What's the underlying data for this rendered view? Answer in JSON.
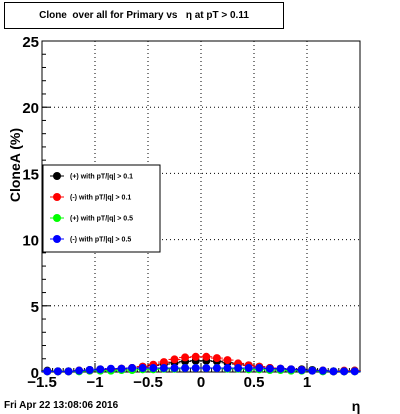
{
  "chart_data": {
    "type": "scatter",
    "title": "Clone  over all for Primary vs   η at pT > 0.11",
    "xlabel": "η",
    "ylabel": "CloneA (%)",
    "xlim": [
      -1.5,
      1.5
    ],
    "ylim": [
      0,
      25
    ],
    "x_ticks": [
      -1.5,
      -1,
      -0.5,
      0,
      0.5,
      1
    ],
    "x_tick_labels": [
      "−1.5",
      "−1",
      "−0.5",
      "0",
      "0.5",
      "1"
    ],
    "y_ticks": [
      0,
      5,
      10,
      15,
      20,
      25
    ],
    "y_tick_labels": [
      "0",
      "5",
      "10",
      "15",
      "20",
      "25"
    ],
    "grid": true,
    "legend_position": "middle-left",
    "series": [
      {
        "name": "(+) with pT/|q| > 0.1",
        "color": "#000000",
        "x": [
          -1.45,
          -1.35,
          -1.25,
          -1.15,
          -1.05,
          -0.95,
          -0.85,
          -0.75,
          -0.65,
          -0.55,
          -0.45,
          -0.35,
          -0.25,
          -0.15,
          -0.05,
          0.05,
          0.15,
          0.25,
          0.35,
          0.45,
          0.55,
          0.65,
          0.75,
          0.85,
          0.95,
          1.05,
          1.15,
          1.25,
          1.35,
          1.45
        ],
        "values": [
          0.1,
          0.05,
          0.05,
          0.1,
          0.15,
          0.2,
          0.2,
          0.25,
          0.3,
          0.4,
          0.5,
          0.6,
          0.7,
          0.8,
          0.85,
          0.85,
          0.8,
          0.7,
          0.6,
          0.5,
          0.4,
          0.3,
          0.25,
          0.2,
          0.2,
          0.15,
          0.1,
          0.05,
          0.05,
          0.1
        ]
      },
      {
        "name": "(-) with pT/|q| > 0.1",
        "color": "#ff0000",
        "x": [
          -1.45,
          -1.35,
          -1.25,
          -1.15,
          -1.05,
          -0.95,
          -0.85,
          -0.75,
          -0.65,
          -0.55,
          -0.45,
          -0.35,
          -0.25,
          -0.15,
          -0.05,
          0.05,
          0.15,
          0.25,
          0.35,
          0.45,
          0.55,
          0.65,
          0.75,
          0.85,
          0.95,
          1.05,
          1.15,
          1.25,
          1.35,
          1.45
        ],
        "values": [
          0.05,
          0.05,
          0.05,
          0.1,
          0.1,
          0.15,
          0.2,
          0.25,
          0.3,
          0.4,
          0.55,
          0.75,
          0.95,
          1.1,
          1.15,
          1.15,
          1.05,
          0.9,
          0.65,
          0.5,
          0.4,
          0.3,
          0.25,
          0.2,
          0.15,
          0.1,
          0.1,
          0.05,
          0.1,
          0.1
        ]
      },
      {
        "name": "(+) with pT/|q| > 0.5",
        "color": "#00ff00",
        "x": [
          -1.45,
          -1.35,
          -1.25,
          -1.15,
          -1.05,
          -0.95,
          -0.85,
          -0.75,
          -0.65,
          -0.55,
          -0.45,
          -0.35,
          -0.25,
          -0.15,
          -0.05,
          0.05,
          0.15,
          0.25,
          0.35,
          0.45,
          0.55,
          0.65,
          0.75,
          0.85,
          0.95,
          1.05,
          1.15,
          1.25,
          1.35,
          1.45
        ],
        "values": [
          0.05,
          0.05,
          0.05,
          0.05,
          0.1,
          0.1,
          0.1,
          0.15,
          0.15,
          0.2,
          0.2,
          0.25,
          0.25,
          0.3,
          0.3,
          0.3,
          0.3,
          0.25,
          0.25,
          0.2,
          0.2,
          0.15,
          0.15,
          0.1,
          0.1,
          0.1,
          0.05,
          0.05,
          0.05,
          0.05
        ]
      },
      {
        "name": "(-) with pT/|q| > 0.5",
        "color": "#0000ff",
        "x": [
          -1.45,
          -1.35,
          -1.25,
          -1.15,
          -1.05,
          -0.95,
          -0.85,
          -0.75,
          -0.65,
          -0.55,
          -0.45,
          -0.35,
          -0.25,
          -0.15,
          -0.05,
          0.05,
          0.15,
          0.25,
          0.35,
          0.45,
          0.55,
          0.65,
          0.75,
          0.85,
          0.95,
          1.05,
          1.15,
          1.25,
          1.35,
          1.45
        ],
        "values": [
          0.05,
          0.05,
          0.05,
          0.1,
          0.15,
          0.2,
          0.25,
          0.25,
          0.3,
          0.3,
          0.3,
          0.3,
          0.3,
          0.3,
          0.3,
          0.3,
          0.3,
          0.3,
          0.3,
          0.3,
          0.3,
          0.25,
          0.25,
          0.2,
          0.15,
          0.1,
          0.1,
          0.05,
          0.05,
          0.05
        ]
      }
    ]
  },
  "timestamp": "Fri Apr 22 13:08:06 2016"
}
